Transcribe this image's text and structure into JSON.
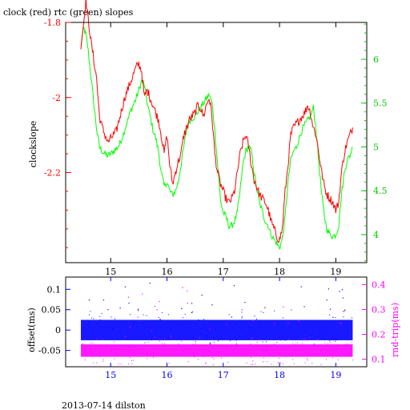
{
  "title": "clock (red) rtc (green) slopes",
  "footer": "2013-07-14 dilston",
  "chart_data": [
    {
      "type": "line",
      "title": "clock (red) rtc (green) slopes",
      "ylabel": "clockslope",
      "x_ticks": [
        "15",
        "16",
        "17",
        "18",
        "19"
      ],
      "xlim": [
        14.2,
        19.55
      ],
      "left_axis": {
        "ylim": [
          -2.44,
          -1.8
        ],
        "ticks": [
          -1.8,
          -2,
          -2.2
        ],
        "tick_labels": [
          "-1.8",
          "-2",
          "-2.2"
        ],
        "color": "#ff0000"
      },
      "right_axis": {
        "ylim": [
          3.68,
          6.42
        ],
        "ticks": [
          4,
          4.5,
          5,
          5.5,
          6
        ],
        "tick_labels": [
          "4",
          "4.5",
          "5",
          "5.5",
          "6"
        ],
        "color": "#00c800"
      },
      "series": [
        {
          "name": "clock",
          "color": "#ff0000",
          "axis": "left",
          "x": [
            14.47,
            14.52,
            14.56,
            14.6,
            14.65,
            14.7,
            14.75,
            14.8,
            14.85,
            14.9,
            14.95,
            15.0,
            15.05,
            15.1,
            15.15,
            15.2,
            15.25,
            15.3,
            15.35,
            15.4,
            15.45,
            15.5,
            15.55,
            15.6,
            15.65,
            15.7,
            15.75,
            15.8,
            15.85,
            15.9,
            15.95,
            16.0,
            16.05,
            16.1,
            16.15,
            16.2,
            16.25,
            16.3,
            16.35,
            16.4,
            16.45,
            16.5,
            16.55,
            16.6,
            16.65,
            16.7,
            16.75,
            16.8,
            16.85,
            16.9,
            16.95,
            17.0,
            17.05,
            17.1,
            17.15,
            17.2,
            17.25,
            17.3,
            17.35,
            17.4,
            17.45,
            17.5,
            17.55,
            17.6,
            17.65,
            17.7,
            17.75,
            17.8,
            17.85,
            17.9,
            17.95,
            18.0,
            18.05,
            18.1,
            18.15,
            18.2,
            18.25,
            18.3,
            18.35,
            18.4,
            18.45,
            18.5,
            18.55,
            18.6,
            18.65,
            18.7,
            18.75,
            18.8,
            18.85,
            18.9,
            18.95,
            19.0,
            19.05,
            19.1,
            19.15,
            19.2,
            19.25,
            19.3
          ],
          "values": [
            -1.86,
            -1.8,
            -1.74,
            -1.79,
            -1.85,
            -1.9,
            -1.95,
            -2.05,
            -2.08,
            -2.1,
            -2.12,
            -2.11,
            -2.1,
            -2.09,
            -2.06,
            -2.03,
            -2.0,
            -1.98,
            -1.96,
            -1.94,
            -1.92,
            -1.91,
            -1.93,
            -2.0,
            -1.98,
            -2.0,
            -2.02,
            -2.04,
            -2.06,
            -2.1,
            -2.15,
            -2.1,
            -2.18,
            -2.23,
            -2.2,
            -2.17,
            -2.15,
            -2.1,
            -2.08,
            -2.06,
            -2.05,
            -2.04,
            -2.02,
            -2.03,
            -2.05,
            -2.02,
            -2.0,
            -2.05,
            -2.15,
            -2.2,
            -2.23,
            -2.25,
            -2.27,
            -2.28,
            -2.27,
            -2.25,
            -2.2,
            -2.15,
            -2.12,
            -2.1,
            -2.13,
            -2.18,
            -2.22,
            -2.24,
            -2.26,
            -2.27,
            -2.28,
            -2.3,
            -2.33,
            -2.35,
            -2.37,
            -2.38,
            -2.35,
            -2.25,
            -2.18,
            -2.1,
            -2.08,
            -2.07,
            -2.06,
            -2.05,
            -2.04,
            -2.02,
            -2.04,
            -2.08,
            -2.1,
            -2.15,
            -2.2,
            -2.24,
            -2.26,
            -2.27,
            -2.28,
            -2.3,
            -2.28,
            -2.2,
            -2.15,
            -2.12,
            -2.1,
            -2.08
          ]
        },
        {
          "name": "rtc",
          "color": "#00ff00",
          "axis": "right",
          "x": [
            14.47,
            14.52,
            14.56,
            14.6,
            14.65,
            14.7,
            14.75,
            14.8,
            14.85,
            14.9,
            14.95,
            15.0,
            15.05,
            15.1,
            15.15,
            15.2,
            15.25,
            15.3,
            15.35,
            15.4,
            15.45,
            15.5,
            15.55,
            15.6,
            15.65,
            15.7,
            15.75,
            15.8,
            15.85,
            15.9,
            15.95,
            16.0,
            16.05,
            16.1,
            16.15,
            16.2,
            16.25,
            16.3,
            16.35,
            16.4,
            16.45,
            16.5,
            16.55,
            16.6,
            16.65,
            16.7,
            16.75,
            16.8,
            16.85,
            16.9,
            16.95,
            17.0,
            17.05,
            17.1,
            17.15,
            17.2,
            17.25,
            17.3,
            17.35,
            17.4,
            17.45,
            17.5,
            17.55,
            17.6,
            17.65,
            17.7,
            17.75,
            17.8,
            17.85,
            17.9,
            17.95,
            18.0,
            18.05,
            18.1,
            18.15,
            18.2,
            18.25,
            18.3,
            18.35,
            18.4,
            18.45,
            18.5,
            18.55,
            18.6,
            18.65,
            18.7,
            18.75,
            18.8,
            18.85,
            18.9,
            18.95,
            19.0,
            19.05,
            19.1,
            19.15,
            19.2,
            19.25,
            19.3
          ],
          "values": [
            6.15,
            6.35,
            6.28,
            6.1,
            5.8,
            5.5,
            5.2,
            5.0,
            4.95,
            4.92,
            4.9,
            4.92,
            4.95,
            4.98,
            5.02,
            5.1,
            5.2,
            5.3,
            5.4,
            5.48,
            5.55,
            5.65,
            5.75,
            5.7,
            5.5,
            5.35,
            5.2,
            5.1,
            4.95,
            4.7,
            4.55,
            4.6,
            4.5,
            4.45,
            4.5,
            4.6,
            4.8,
            5.0,
            5.2,
            5.3,
            5.33,
            5.35,
            5.4,
            5.45,
            5.5,
            5.55,
            5.6,
            5.5,
            5.2,
            4.8,
            4.4,
            4.25,
            4.2,
            4.1,
            4.1,
            4.15,
            4.25,
            4.5,
            4.8,
            4.95,
            5.0,
            4.95,
            4.7,
            4.5,
            4.35,
            4.25,
            4.15,
            4.1,
            4.0,
            3.95,
            3.9,
            3.85,
            3.95,
            4.2,
            4.6,
            4.85,
            4.95,
            5.0,
            5.1,
            5.2,
            5.25,
            5.3,
            5.35,
            5.45,
            5.2,
            4.8,
            4.45,
            4.2,
            4.05,
            4.0,
            3.98,
            4.0,
            4.1,
            4.45,
            4.7,
            4.85,
            4.9,
            5.0
          ]
        }
      ]
    },
    {
      "type": "scatter",
      "x_ticks": [
        "15",
        "16",
        "17",
        "18",
        "19"
      ],
      "xlim": [
        14.2,
        19.55
      ],
      "left_axis": {
        "label": "offset(ms)",
        "ylim": [
          -0.09,
          0.13
        ],
        "ticks": [
          0.1,
          0.05,
          0,
          -0.05
        ],
        "tick_labels": [
          "0.1",
          "0.05",
          "0",
          "-0.05"
        ],
        "color": "#0000ff"
      },
      "right_axis": {
        "label": "rnd-trip(ms)",
        "ylim": [
          0.07,
          0.43
        ],
        "ticks": [
          0.4,
          0.3,
          0.2,
          0.1
        ],
        "tick_labels": [
          "0.4",
          "0.3",
          "0.2",
          "0.1"
        ],
        "color": "#ff00ff"
      },
      "series": [
        {
          "name": "offset",
          "color": "#0000ff",
          "axis": "left",
          "band": [
            -0.025,
            0.025
          ],
          "outlier_max": 0.12,
          "x_range": [
            14.47,
            19.3
          ]
        },
        {
          "name": "rnd-trip",
          "color": "#ff00ff",
          "axis": "right",
          "band": [
            0.11,
            0.16
          ],
          "outlier_max": 0.41,
          "x_range": [
            14.47,
            19.3
          ]
        }
      ]
    }
  ]
}
